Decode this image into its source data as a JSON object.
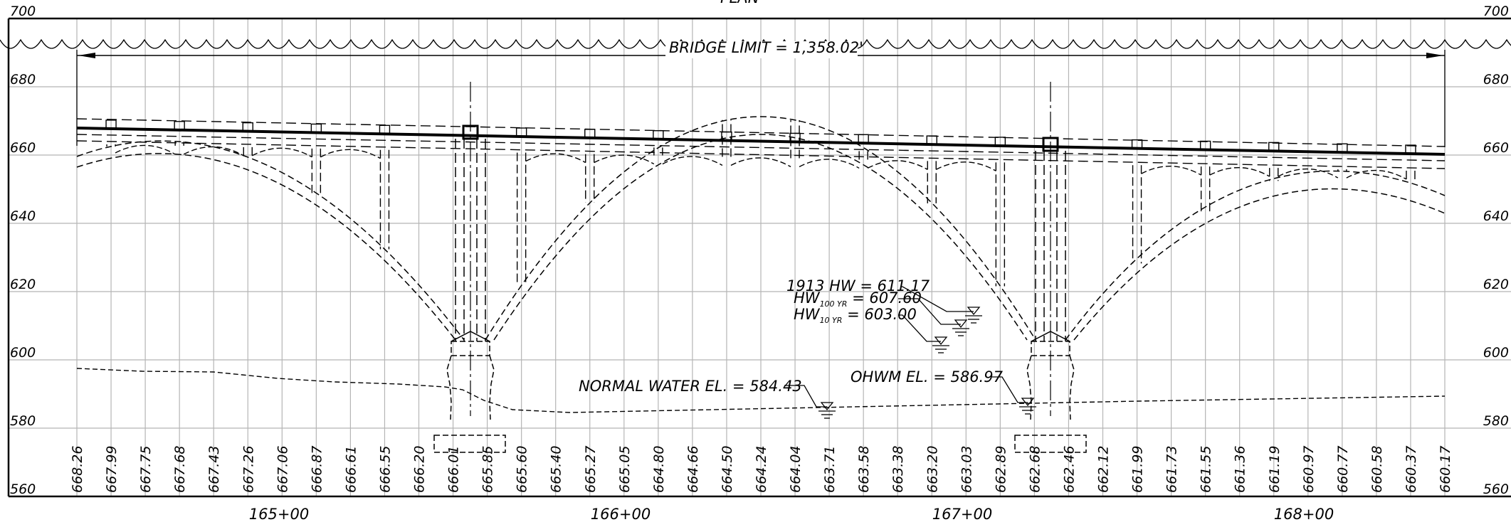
{
  "title_partial": "PLAN",
  "bridge_limit_label": "BRIDGE LIMIT = 1,358.02'",
  "elevation_labels": [
    "700",
    "680",
    "660",
    "640",
    "620",
    "600",
    "580",
    "560"
  ],
  "station_labels": [
    "165+00",
    "166+00",
    "167+00",
    "168+00"
  ],
  "profile_grade_elevations": [
    "668.26",
    "667.99",
    "667.75",
    "667.68",
    "667.43",
    "667.26",
    "667.06",
    "666.87",
    "666.61",
    "666.55",
    "666.20",
    "666.01",
    "665.85",
    "665.60",
    "665.40",
    "665.27",
    "665.05",
    "664.80",
    "664.66",
    "664.50",
    "664.24",
    "664.04",
    "663.71",
    "663.58",
    "663.38",
    "663.20",
    "663.03",
    "662.89",
    "662.68",
    "662.46",
    "662.12",
    "661.99",
    "661.73",
    "661.55",
    "661.36",
    "661.19",
    "660.97",
    "660.77",
    "660.58",
    "660.37",
    "660.17"
  ],
  "water_levels": {
    "hw_1913": "1913 HW = 611.17",
    "hw_100yr_prefix": "HW",
    "hw_100yr_sub": "100 YR",
    "hw_100yr_value": " = 607.60",
    "hw_10yr_prefix": "HW",
    "hw_10yr_sub": "10 YR",
    "hw_10yr_value": " = 603.00",
    "normal_water": "NORMAL WATER EL. = 584.43",
    "ohwm": "OHWM EL. = 586.97"
  }
}
